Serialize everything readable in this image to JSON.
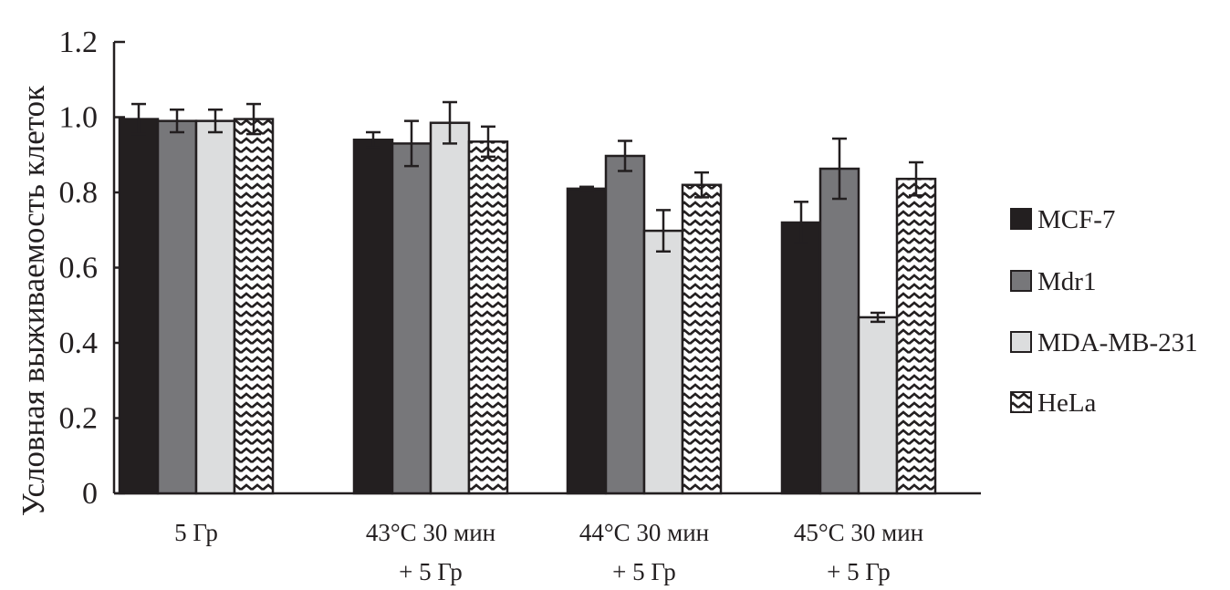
{
  "chart_data": {
    "type": "bar",
    "title": "",
    "xlabel": "",
    "ylabel": "Условная выживаемость клеток",
    "ylim": [
      0,
      1.2
    ],
    "yticks": [
      "0",
      "0.2",
      "0.4",
      "0.6",
      "0.8",
      "1.0",
      "1.2"
    ],
    "ytick_values": [
      0,
      0.2,
      0.4,
      0.6,
      0.8,
      1.0,
      1.2
    ],
    "grid": false,
    "legend_position": "right",
    "categories": [
      [
        "5 Гр"
      ],
      [
        "43°C 30 мин",
        "+ 5 Гр"
      ],
      [
        "44°C 30 мин",
        "+ 5 Гр"
      ],
      [
        "45°C 30 мин",
        "+ 5 Гр"
      ]
    ],
    "series": [
      {
        "name": "MCF-7",
        "color": "#231f20",
        "pattern": "solid",
        "values": [
          0.995,
          0.94,
          0.81,
          0.72
        ],
        "errors": [
          0.04,
          0.02,
          0.005,
          0.055
        ]
      },
      {
        "name": "Mdr1",
        "color": "#77777a",
        "pattern": "solid",
        "values": [
          0.99,
          0.93,
          0.897,
          0.863
        ],
        "errors": [
          0.03,
          0.06,
          0.04,
          0.08
        ]
      },
      {
        "name": "MDA-MB-231",
        "color": "#dcddde",
        "pattern": "solid",
        "values": [
          0.99,
          0.985,
          0.698,
          0.468
        ],
        "errors": [
          0.03,
          0.055,
          0.055,
          0.012
        ]
      },
      {
        "name": "HeLa",
        "color": "#ffffff",
        "pattern": "zigzag",
        "values": [
          0.995,
          0.935,
          0.82,
          0.836
        ],
        "errors": [
          0.04,
          0.04,
          0.033,
          0.044
        ]
      }
    ]
  }
}
